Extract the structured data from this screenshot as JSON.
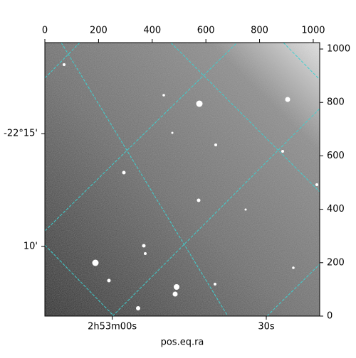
{
  "chart_data": {
    "type": "image",
    "xlabel": "pos.eq.ra",
    "xlim": [
      0,
      1024
    ],
    "ylim": [
      0,
      1024
    ],
    "xticks": [
      0,
      200,
      400,
      600,
      800,
      1000
    ],
    "yticks": [
      0,
      200,
      400,
      600,
      800,
      1000
    ],
    "ra_ticks": [
      {
        "value": 251,
        "label": "2h53m00s"
      },
      {
        "value": 825,
        "label": "30s"
      }
    ],
    "dec_ticks": [
      {
        "value": 683,
        "label": "-22°15'"
      },
      {
        "value": 261,
        "label": "10'"
      }
    ]
  }
}
